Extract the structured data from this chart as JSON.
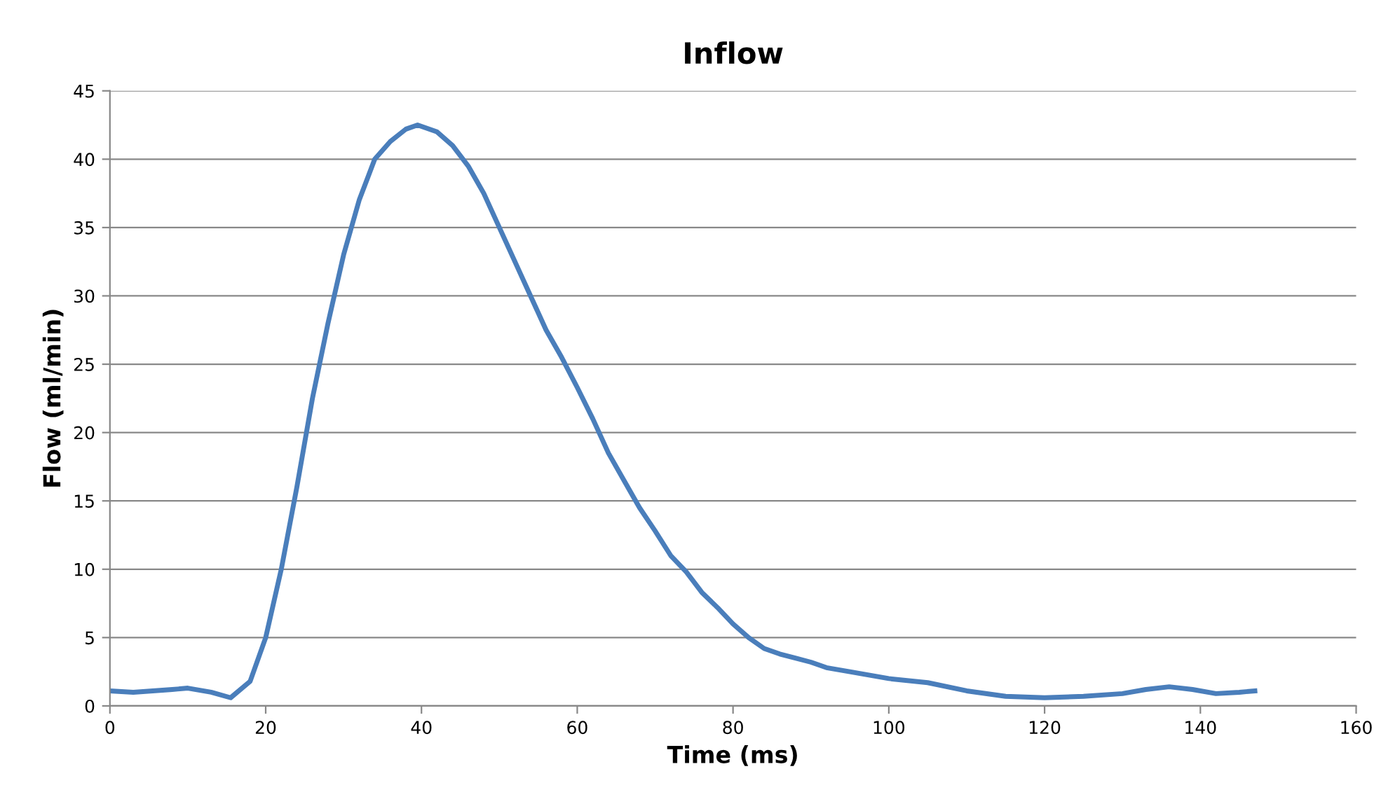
{
  "chart_data": {
    "type": "line",
    "title": "Inflow",
    "xlabel": "Time (ms)",
    "ylabel": "Flow (ml/min)",
    "xlim": [
      0,
      160
    ],
    "xticks": [
      0,
      20,
      40,
      60,
      80,
      100,
      120,
      140,
      160
    ],
    "ylim": [
      0,
      45
    ],
    "yticks": [
      0,
      5,
      10,
      15,
      20,
      25,
      30,
      35,
      40,
      45
    ],
    "grid": "y",
    "legend": false,
    "marker": "none",
    "line_style": "solid",
    "series": [
      {
        "color": "#4a7ebb",
        "x": [
          0,
          3,
          8,
          10,
          13,
          15.5,
          18,
          20,
          22,
          24,
          26,
          28,
          30,
          32,
          34,
          36,
          38,
          39.5,
          42,
          44,
          46,
          48,
          50,
          52,
          54,
          56,
          58,
          60,
          62,
          64,
          66,
          68,
          70,
          72,
          74,
          76,
          78,
          80,
          82,
          84,
          86,
          88,
          90,
          92,
          95,
          100,
          105,
          110,
          115,
          120,
          125,
          130,
          133,
          136,
          139,
          142,
          145,
          147
        ],
        "values": [
          1.1,
          1.0,
          1.2,
          1.3,
          1.0,
          0.6,
          1.8,
          5,
          10,
          16,
          22.5,
          28,
          33,
          37,
          40,
          41.3,
          42.2,
          42.5,
          42,
          41,
          39.5,
          37.5,
          35,
          32.5,
          30,
          27.5,
          25.5,
          23.3,
          21,
          18.5,
          16.5,
          14.5,
          12.8,
          11,
          9.8,
          8.3,
          7.2,
          6,
          5,
          4.2,
          3.8,
          3.5,
          3.2,
          2.8,
          2.5,
          2.0,
          1.7,
          1.1,
          0.7,
          0.6,
          0.7,
          0.9,
          1.2,
          1.4,
          1.2,
          0.9,
          1.0,
          1.1
        ]
      }
    ]
  }
}
